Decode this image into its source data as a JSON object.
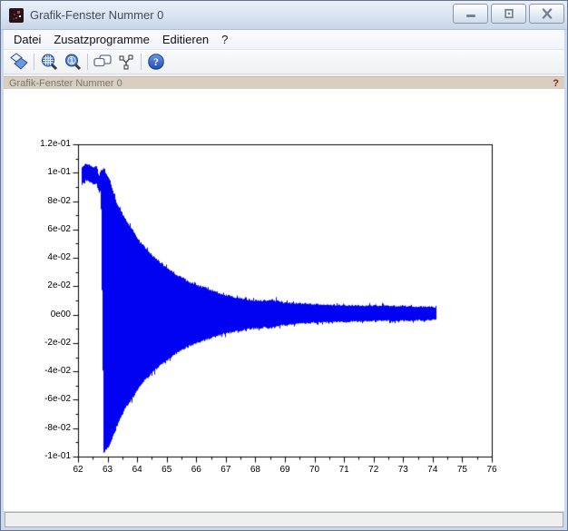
{
  "window": {
    "title": "Grafik-Fenster Nummer 0",
    "controls": {
      "minimize": "minimize",
      "restore": "restore",
      "close": "close"
    }
  },
  "menu": {
    "items": [
      {
        "label": "Datei"
      },
      {
        "label": "Zusatzprogramme"
      },
      {
        "label": "Editieren"
      },
      {
        "label": "?"
      }
    ]
  },
  "toolbar": {
    "buttons": [
      {
        "name": "rotate"
      },
      {
        "name": "zoom-area"
      },
      {
        "name": "original-view"
      },
      {
        "name": "graphics-editor"
      },
      {
        "name": "edit-curve"
      },
      {
        "name": "help"
      }
    ]
  },
  "infobar": {
    "label": "Grafik-Fenster Nummer 0",
    "help_glyph": "?"
  },
  "statusbar": {
    "text": ""
  },
  "chart_data": {
    "type": "line",
    "title": "",
    "xlabel": "",
    "ylabel": "",
    "grid": false,
    "legend": null,
    "series_color": "#0202F2",
    "xlim": [
      62,
      76
    ],
    "ylim": [
      -0.1,
      0.12
    ],
    "x_ticks": [
      62,
      63,
      64,
      65,
      66,
      67,
      68,
      69,
      70,
      71,
      72,
      73,
      74,
      75,
      76
    ],
    "y_ticks": [
      {
        "label": "1.2e-01",
        "value": 0.12
      },
      {
        "label": "1e-01",
        "value": 0.1
      },
      {
        "label": "8e-02",
        "value": 0.08
      },
      {
        "label": "6e-02",
        "value": 0.06
      },
      {
        "label": "4e-02",
        "value": 0.04
      },
      {
        "label": "2e-02",
        "value": 0.02
      },
      {
        "label": "0e00",
        "value": 0.0
      },
      {
        "label": "-2e-02",
        "value": -0.02
      },
      {
        "label": "-4e-02",
        "value": -0.04
      },
      {
        "label": "-6e-02",
        "value": -0.06
      },
      {
        "label": "-8e-02",
        "value": -0.08
      },
      {
        "label": "-1e-01",
        "value": -0.1
      }
    ],
    "description": "Dense blue audio-like waveform: flat band near +0.1 from t=62.1 to 62.76, sudden full-range burst at t=62.8, then exponentially decaying oscillation envelope until t=74.1",
    "waveform_envelope": {
      "t": [
        62.11,
        62.25,
        62.4,
        62.52,
        62.62,
        62.7,
        62.76,
        62.86,
        62.95,
        63.05,
        63.26,
        63.45,
        63.65,
        63.87,
        64.1,
        64.27,
        64.6,
        64.89,
        65.28,
        65.6,
        65.9,
        66.33,
        66.88,
        67.34,
        67.89,
        68.2,
        68.51,
        68.7,
        68.91,
        69.4,
        69.92,
        70.93,
        71.95,
        72.96,
        73.6,
        74.1
      ],
      "upper": [
        0.103,
        0.106,
        0.105,
        0.103,
        0.104,
        0.097,
        0.1,
        0.103,
        0.098,
        0.095,
        0.08,
        0.072,
        0.064,
        0.058,
        0.05,
        0.046,
        0.039,
        0.034,
        0.028,
        0.024,
        0.0205,
        0.018,
        0.0135,
        0.0115,
        0.0095,
        0.009,
        0.01,
        0.009,
        0.008,
        0.0075,
        0.007,
        0.0062,
        0.0058,
        0.0055,
        0.0052,
        0.0048
      ],
      "lower": [
        0.092,
        0.095,
        0.094,
        0.092,
        0.093,
        0.086,
        0.089,
        -0.097,
        -0.094,
        -0.092,
        -0.08,
        -0.071,
        -0.063,
        -0.057,
        -0.049,
        -0.045,
        -0.038,
        -0.033,
        -0.027,
        -0.023,
        -0.02,
        -0.017,
        -0.013,
        -0.011,
        -0.0092,
        -0.0085,
        -0.0088,
        -0.0078,
        -0.007,
        -0.0062,
        -0.0052,
        -0.0045,
        -0.004,
        -0.0037,
        -0.0035,
        -0.003
      ]
    }
  }
}
